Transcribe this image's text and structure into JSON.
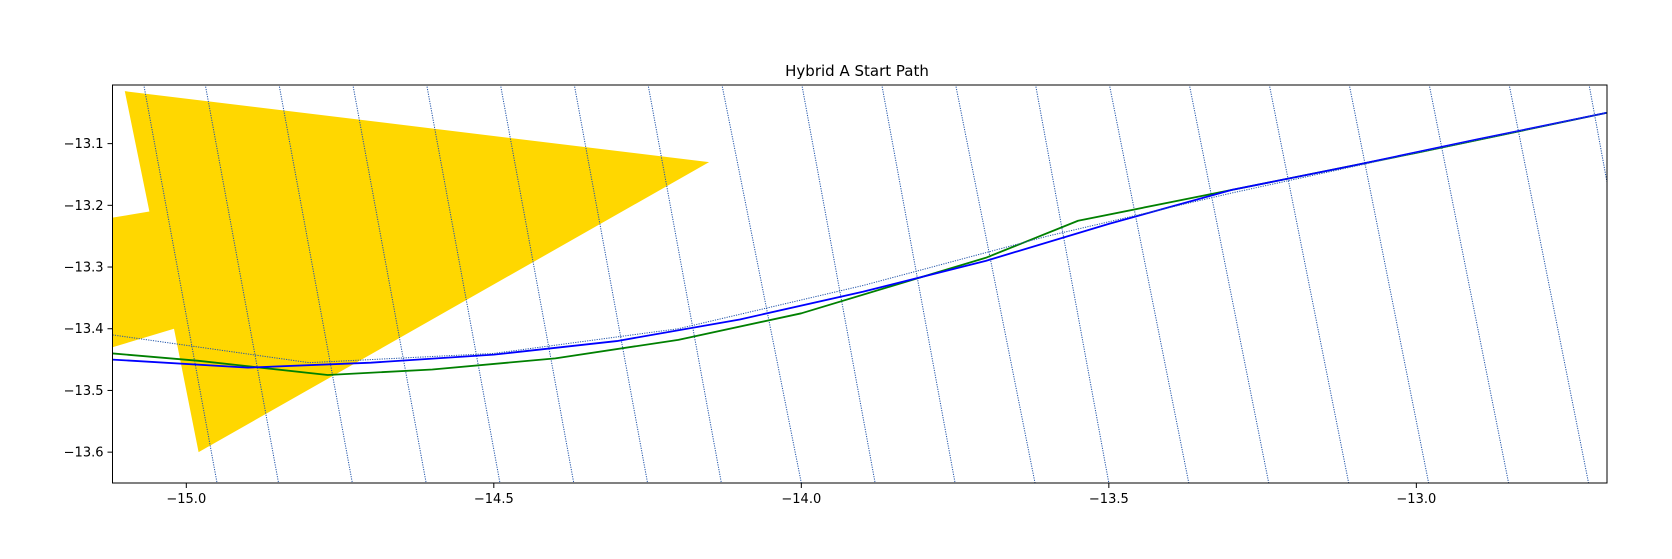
{
  "chart_data": {
    "type": "line",
    "title": "Hybrid A Start Path",
    "xlabel": "",
    "ylabel": "",
    "xlim": [
      -15.12,
      -12.69
    ],
    "ylim": [
      -13.65,
      -13.005
    ],
    "grid": false,
    "x_ticks": [
      -15.0,
      -14.5,
      -14.0,
      -13.5,
      -13.0
    ],
    "x_tick_labels": [
      "−15.0",
      "−14.5",
      "−14.0",
      "−13.5",
      "−13.0"
    ],
    "y_ticks": [
      -13.1,
      -13.2,
      -13.3,
      -13.4,
      -13.5,
      -13.6
    ],
    "y_tick_labels": [
      "−13.1",
      "−13.2",
      "−13.3",
      "−13.4",
      "−13.5",
      "−13.6"
    ],
    "obstacle": {
      "color": "#FFD700",
      "polygon": [
        [
          -15.1,
          -13.015
        ],
        [
          -14.15,
          -13.13
        ],
        [
          -14.98,
          -13.6
        ],
        [
          -15.02,
          -13.4
        ],
        [
          -15.12,
          -13.43
        ],
        [
          -15.12,
          -13.22
        ],
        [
          -15.06,
          -13.21
        ]
      ]
    },
    "series": [
      {
        "color": "#008000",
        "x": [
          -15.12,
          -14.98,
          -14.77,
          -14.6,
          -14.4,
          -14.2,
          -14.0,
          -13.85,
          -13.7,
          -13.55,
          -13.4,
          -13.25,
          -13.0,
          -12.69
        ],
        "y": [
          -13.44,
          -13.452,
          -13.475,
          -13.466,
          -13.448,
          -13.418,
          -13.375,
          -13.33,
          -13.285,
          -13.225,
          -13.195,
          -13.165,
          -13.115,
          -13.05
        ]
      },
      {
        "color": "#0000FF",
        "x": [
          -15.12,
          -14.9,
          -14.7,
          -14.5,
          -14.3,
          -14.1,
          -13.9,
          -13.7,
          -13.5,
          -13.3,
          -13.1,
          -12.9,
          -12.69
        ],
        "y": [
          -13.45,
          -13.463,
          -13.455,
          -13.442,
          -13.42,
          -13.385,
          -13.34,
          -13.29,
          -13.23,
          -13.175,
          -13.135,
          -13.093,
          -13.05
        ]
      },
      {
        "color": "#2255AA",
        "style": "dotted",
        "x": [
          -15.12,
          -14.8,
          -14.5,
          -14.2,
          -13.9,
          -13.6,
          -13.3,
          -13.0,
          -12.69
        ],
        "y": [
          -13.41,
          -13.455,
          -13.44,
          -13.4,
          -13.33,
          -13.25,
          -13.18,
          -13.115,
          -13.05
        ]
      }
    ],
    "stripes": {
      "color": "#2255AA",
      "style": "dotted",
      "segments": [
        [
          [
            -15.07,
            -13.0
          ],
          [
            -14.95,
            -13.65
          ]
        ],
        [
          [
            -14.97,
            -13.0
          ],
          [
            -14.85,
            -13.65
          ]
        ],
        [
          [
            -14.85,
            -13.0
          ],
          [
            -14.73,
            -13.65
          ]
        ],
        [
          [
            -14.73,
            -13.0
          ],
          [
            -14.61,
            -13.65
          ]
        ],
        [
          [
            -14.61,
            -13.0
          ],
          [
            -14.49,
            -13.65
          ]
        ],
        [
          [
            -14.49,
            -13.0
          ],
          [
            -14.37,
            -13.65
          ]
        ],
        [
          [
            -14.37,
            -13.0
          ],
          [
            -14.25,
            -13.65
          ]
        ],
        [
          [
            -14.25,
            -13.0
          ],
          [
            -14.13,
            -13.65
          ]
        ],
        [
          [
            -14.13,
            -13.0
          ],
          [
            -14.0,
            -13.65
          ]
        ],
        [
          [
            -14.0,
            -13.0
          ],
          [
            -13.88,
            -13.65
          ]
        ],
        [
          [
            -13.87,
            -13.0
          ],
          [
            -13.75,
            -13.65
          ]
        ],
        [
          [
            -13.75,
            -13.0
          ],
          [
            -13.62,
            -13.65
          ]
        ],
        [
          [
            -13.62,
            -13.0
          ],
          [
            -13.5,
            -13.65
          ]
        ],
        [
          [
            -13.5,
            -13.0
          ],
          [
            -13.37,
            -13.65
          ]
        ],
        [
          [
            -13.37,
            -13.0
          ],
          [
            -13.24,
            -13.65
          ]
        ],
        [
          [
            -13.24,
            -13.0
          ],
          [
            -13.11,
            -13.65
          ]
        ],
        [
          [
            -13.11,
            -13.0
          ],
          [
            -12.98,
            -13.65
          ]
        ],
        [
          [
            -12.98,
            -13.0
          ],
          [
            -12.85,
            -13.65
          ]
        ],
        [
          [
            -12.85,
            -13.0
          ],
          [
            -12.72,
            -13.65
          ]
        ],
        [
          [
            -12.72,
            -13.0
          ],
          [
            -12.6,
            -13.65
          ]
        ]
      ]
    }
  }
}
